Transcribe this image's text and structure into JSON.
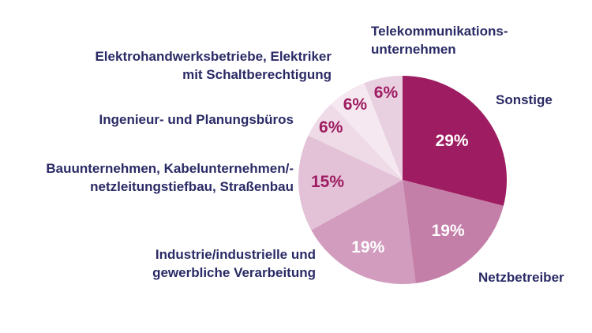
{
  "chart_data": {
    "type": "pie",
    "title": "",
    "unit": "%",
    "categories": [
      "Sonstige",
      "Netzbetreiber",
      "Industrie/industrielle und gewerbliche Verarbeitung",
      "Bauunternehmen, Kabelunternehmen/-netzleitungstiefbau, Straßenbau",
      "Ingenieur- und Planungsbüros",
      "Elektrohandwerksbetriebe, Elektriker mit Schaltberechtigung",
      "Telekommunikationsunternehmen"
    ],
    "values": [
      29,
      19,
      19,
      15,
      6,
      6,
      6
    ],
    "colors": [
      "#9e1c61",
      "#c47fa9",
      "#d19cbe",
      "#e3c2d7",
      "#efdbe8",
      "#f5e8f0",
      "#e9d0e0"
    ],
    "value_label_colors": [
      "#ffffff",
      "#ffffff",
      "#ffffff",
      "#9e1c61",
      "#9e1c61",
      "#9e1c61",
      "#9e1c61"
    ],
    "layout": {
      "start_angle_deg": 0,
      "direction": "clockwise",
      "center": [
        510,
        228
      ],
      "radius": 132,
      "label_radius_fraction": [
        0.6,
        0.66,
        0.73,
        0.72,
        0.85,
        0.85,
        0.85
      ],
      "legend": "none",
      "labels_outside": true
    }
  },
  "labels": {
    "telekommunikation": "Telekommunikations-\nunternehmen",
    "sonstige": "Sonstige",
    "netzbetreiber": "Netzbetreiber",
    "industrie": "Industrie/industrielle und\ngewerbliche Verarbeitung",
    "bauunternehmen": "Bauunternehmen, Kabelunternehmen/-\nnetzleitungstiefbau, Straßenbau",
    "ingenieur": "Ingenieur- und Planungsbüros",
    "elektrohandwerk": "Elektrohandwerksbetriebe, Elektriker\nmit Schaltberechtigung"
  },
  "colors": {
    "label_text": "#2a2a66",
    "background": "#ffffff",
    "accent": "#9e1c61"
  }
}
